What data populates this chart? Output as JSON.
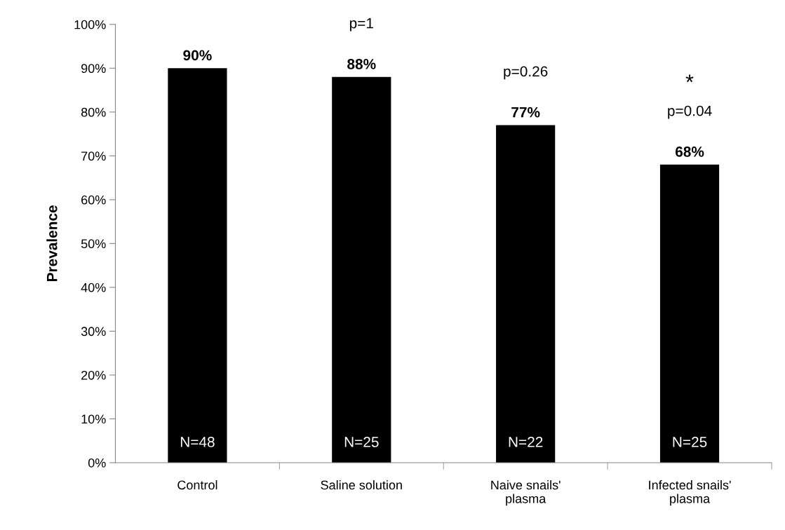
{
  "chart_data": {
    "type": "bar",
    "ylabel": "Prevalence",
    "categories": [
      "Control",
      "Saline solution",
      "Naive snails'\nplasma",
      "Infected snails'\nplasma"
    ],
    "values": [
      90,
      88,
      77,
      68
    ],
    "color": "#000000",
    "value_labels": [
      "90%",
      "88%",
      "77%",
      "68%"
    ],
    "ylim": [
      0,
      100
    ],
    "yticks": [
      {
        "value": 0,
        "label": "0%"
      },
      {
        "value": 10,
        "label": "10%"
      },
      {
        "value": 20,
        "label": "20%"
      },
      {
        "value": 30,
        "label": "30%"
      },
      {
        "value": 40,
        "label": "40%"
      },
      {
        "value": 50,
        "label": "50%"
      },
      {
        "value": 60,
        "label": "60%"
      },
      {
        "value": 70,
        "label": "70%"
      },
      {
        "value": 80,
        "label": "80%"
      },
      {
        "value": 90,
        "label": "90%"
      },
      {
        "value": 100,
        "label": "100%"
      }
    ],
    "grid": false,
    "legend": false,
    "annotations": [
      "p=1",
      "p=0.26",
      "*",
      "p=0.04",
      "N=48",
      "N=25",
      "N=22",
      "N=25"
    ]
  }
}
